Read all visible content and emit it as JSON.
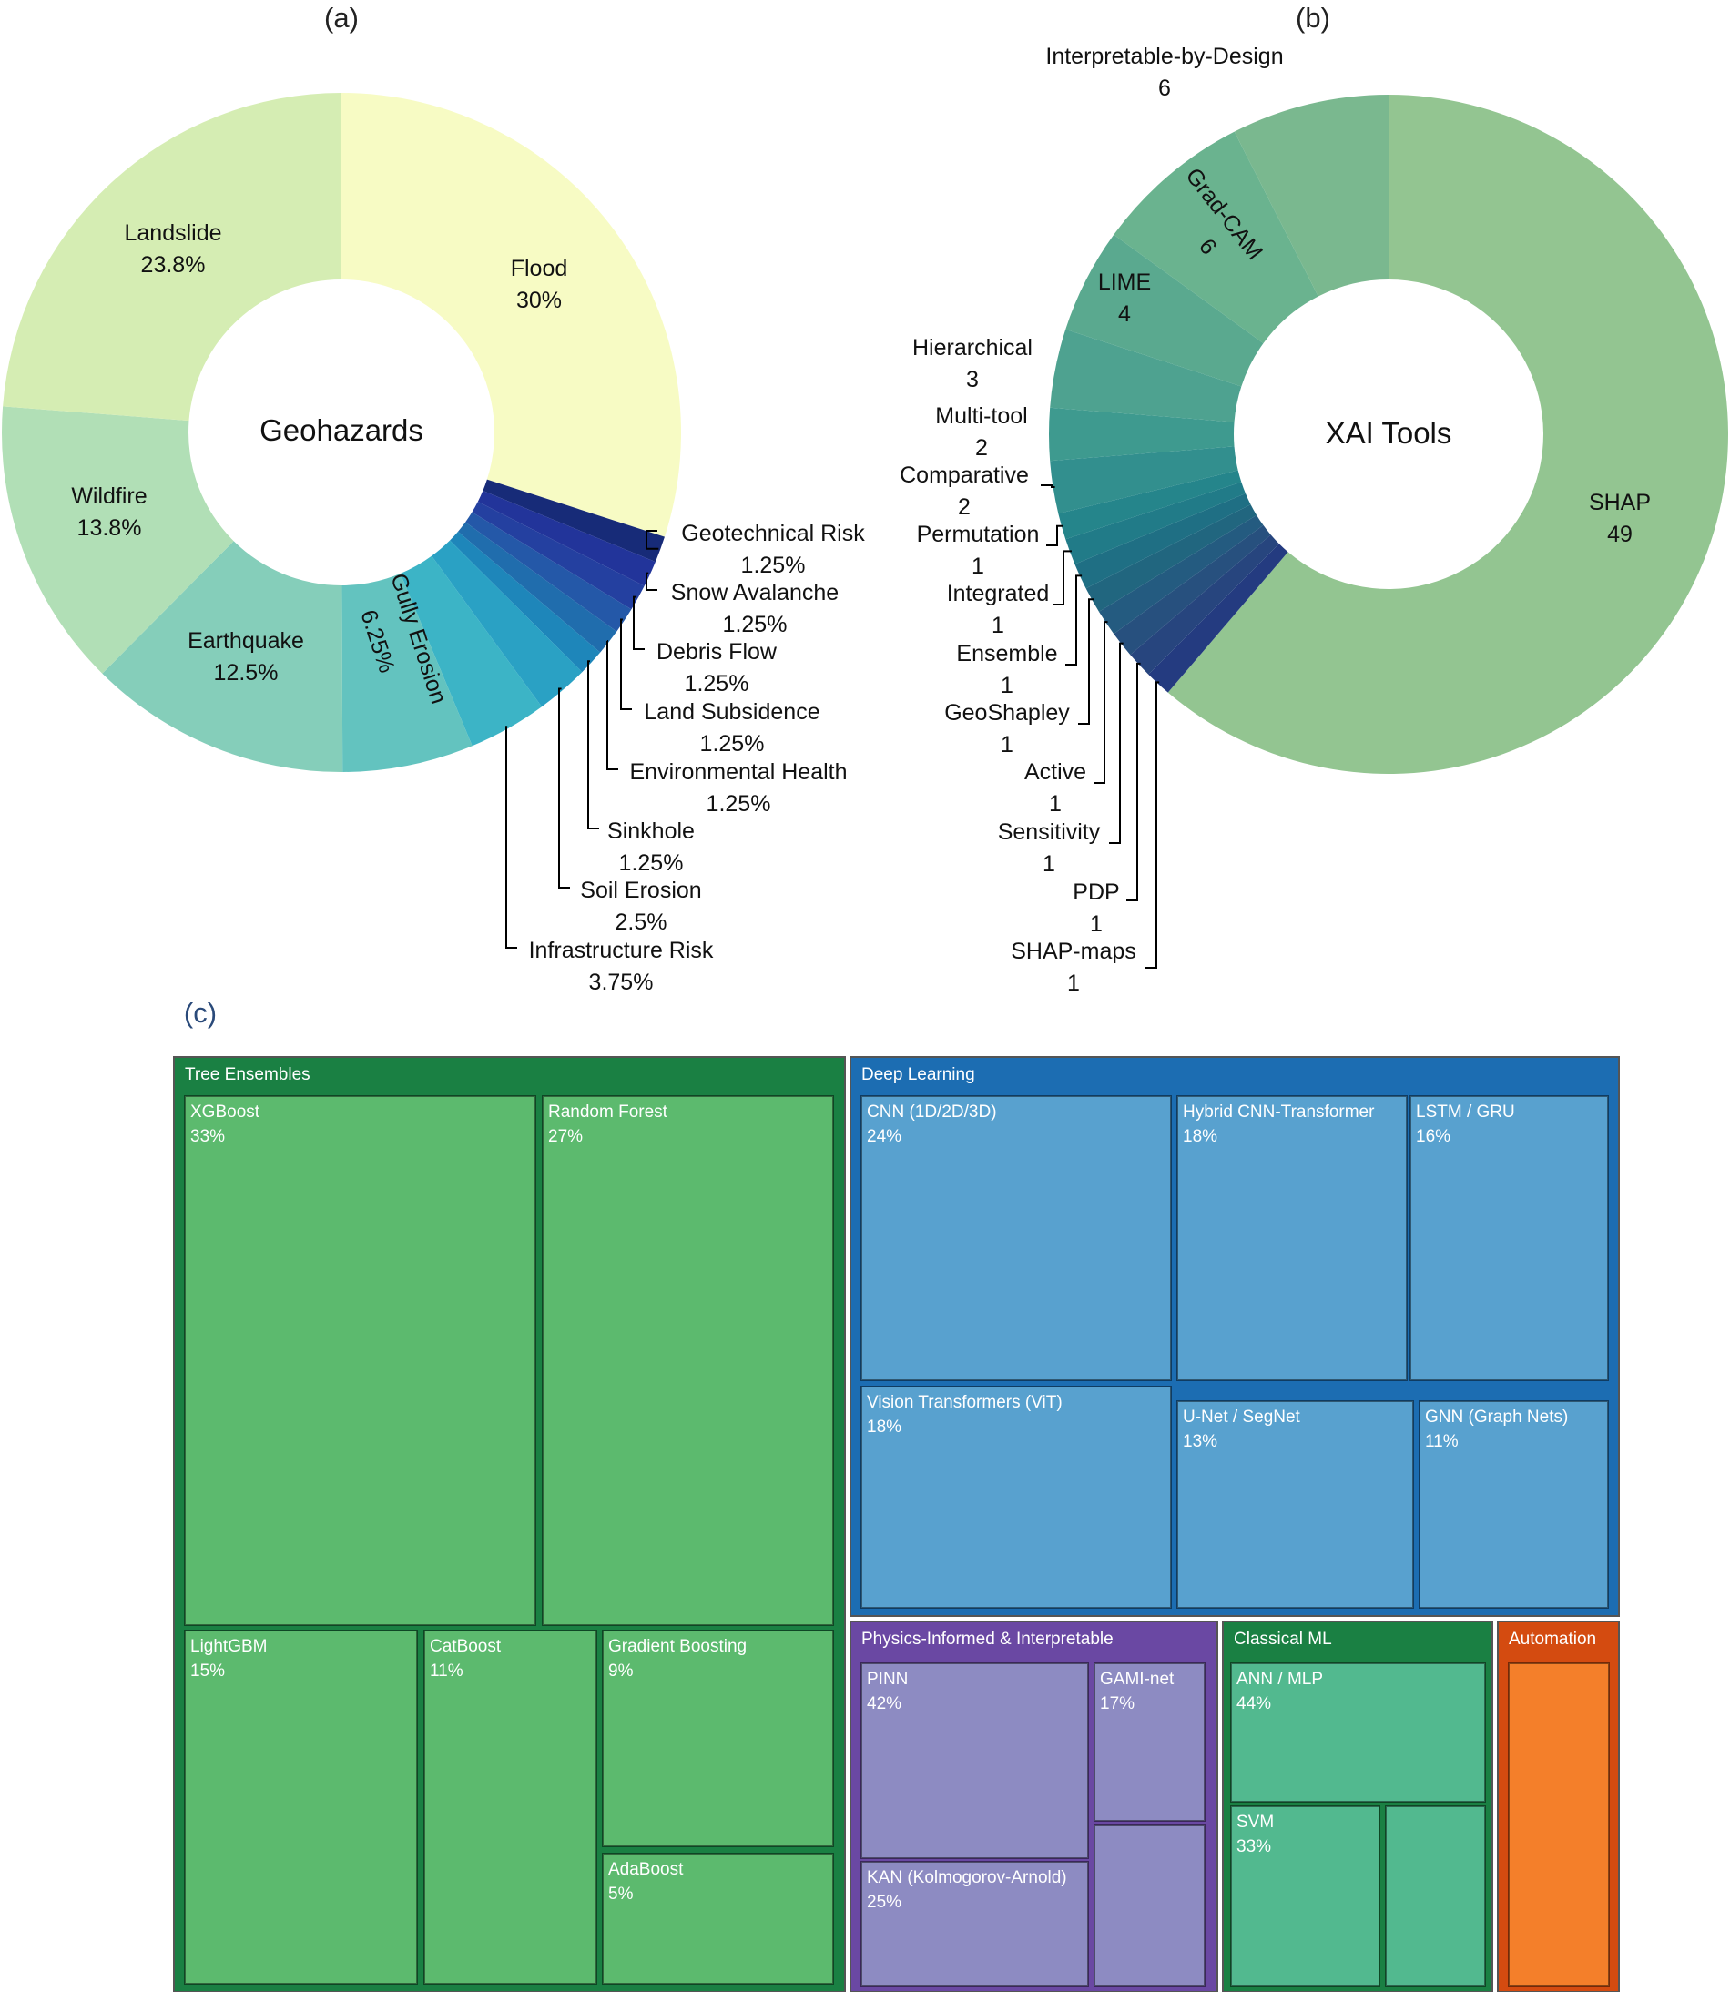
{
  "panel_labels": {
    "a": "(a)",
    "b": "(b)",
    "c": "(c)"
  },
  "chart_data": [
    {
      "type": "pie",
      "style": "donut",
      "center_label": "Geohazards",
      "slices": [
        {
          "label": "Flood",
          "value_text": "30%",
          "value": 30,
          "color": "#f7fbc4"
        },
        {
          "label": "Geotechnical Risk",
          "value_text": "1.25%",
          "value": 1.25,
          "color": "#172b78"
        },
        {
          "label": "Snow Avalanche",
          "value_text": "1.25%",
          "value": 1.25,
          "color": "#22349a"
        },
        {
          "label": "Debris Flow",
          "value_text": "1.25%",
          "value": 1.25,
          "color": "#2440a0"
        },
        {
          "label": "Land Subsidence",
          "value_text": "1.25%",
          "value": 1.25,
          "color": "#2458a8"
        },
        {
          "label": "Environmental Health",
          "value_text": "1.25%",
          "value": 1.25,
          "color": "#206dad"
        },
        {
          "label": "Sinkhole",
          "value_text": "1.25%",
          "value": 1.25,
          "color": "#1e86ba"
        },
        {
          "label": "Soil Erosion",
          "value_text": "2.5%",
          "value": 2.5,
          "color": "#2aa1c4"
        },
        {
          "label": "Infrastructure Risk",
          "value_text": "3.75%",
          "value": 3.75,
          "color": "#3cb4c6"
        },
        {
          "label": "Gully Erosion",
          "value_text": "6.25%",
          "value": 6.25,
          "color": "#63c3bf"
        },
        {
          "label": "Earthquake",
          "value_text": "12.5%",
          "value": 12.5,
          "color": "#85ceba"
        },
        {
          "label": "Wildfire",
          "value_text": "13.8%",
          "value": 13.8,
          "color": "#b1dfb6"
        },
        {
          "label": "Landslide",
          "value_text": "23.8%",
          "value": 23.8,
          "color": "#d5edb3"
        }
      ]
    },
    {
      "type": "pie",
      "style": "donut",
      "center_label": "XAI Tools",
      "slices": [
        {
          "label": "SHAP",
          "value_text": "49",
          "value": 49,
          "color": "#93c591"
        },
        {
          "label": "SHAP-maps",
          "value_text": "1",
          "value": 1,
          "color": "#243b80"
        },
        {
          "label": "PDP",
          "value_text": "1",
          "value": 1,
          "color": "#27457e"
        },
        {
          "label": "Sensitivity",
          "value_text": "1",
          "value": 1,
          "color": "#27507e"
        },
        {
          "label": "Active",
          "value_text": "1",
          "value": 1,
          "color": "#245b80"
        },
        {
          "label": "GeoShapley",
          "value_text": "1",
          "value": 1,
          "color": "#21667f"
        },
        {
          "label": "Ensemble",
          "value_text": "1",
          "value": 1,
          "color": "#1f6f84"
        },
        {
          "label": "Integrated",
          "value_text": "1",
          "value": 1,
          "color": "#217b88"
        },
        {
          "label": "Permutation",
          "value_text": "1",
          "value": 1,
          "color": "#25858b"
        },
        {
          "label": "Comparative",
          "value_text": "2",
          "value": 2,
          "color": "#328f8e"
        },
        {
          "label": "Multi-tool",
          "value_text": "2",
          "value": 2,
          "color": "#3e9a8f"
        },
        {
          "label": "Hierarchical",
          "value_text": "3",
          "value": 3,
          "color": "#4ea290"
        },
        {
          "label": "LIME",
          "value_text": "4",
          "value": 4,
          "color": "#5aa98f"
        },
        {
          "label": "Grad-CAM",
          "value_text": "6",
          "value": 6,
          "color": "#6ab38f"
        },
        {
          "label": "Interpretable-by-Design",
          "value_text": "6",
          "value": 6,
          "color": "#7ab88f"
        }
      ]
    },
    {
      "type": "treemap",
      "groups": [
        {
          "name": "Tree Ensembles",
          "color": "#1a8043",
          "leaf_color": "#5cba6e",
          "items": [
            {
              "name": "XGBoost",
              "pct": "33%"
            },
            {
              "name": "Random Forest",
              "pct": "27%"
            },
            {
              "name": "LightGBM",
              "pct": "15%"
            },
            {
              "name": "CatBoost",
              "pct": "11%"
            },
            {
              "name": "Gradient Boosting",
              "pct": "9%"
            },
            {
              "name": "AdaBoost",
              "pct": "5%"
            }
          ]
        },
        {
          "name": "Deep Learning",
          "color": "#1c6db2",
          "leaf_color": "#58a1cf",
          "items": [
            {
              "name": "CNN (1D/2D/3D)",
              "pct": "24%"
            },
            {
              "name": "Hybrid CNN-Transformer",
              "pct": "18%"
            },
            {
              "name": "LSTM / GRU",
              "pct": "16%"
            },
            {
              "name": "Vision Transformers (ViT)",
              "pct": "18%"
            },
            {
              "name": "U-Net / SegNet",
              "pct": "13%"
            },
            {
              "name": "GNN (Graph Nets)",
              "pct": "11%"
            }
          ]
        },
        {
          "name": "Physics-Informed & Interpretable",
          "color": "#6a48a3",
          "leaf_color": "#8d8bc2",
          "items": [
            {
              "name": "PINN",
              "pct": "42%"
            },
            {
              "name": "GAMI-net",
              "pct": "17%"
            },
            {
              "name": "KAN (Kolmogorov-Arnold)",
              "pct": "25%"
            },
            {
              "name": "",
              "pct": ""
            }
          ]
        },
        {
          "name": "Classical ML",
          "color": "#1a8043",
          "leaf_color": "#52b98f",
          "items": [
            {
              "name": "ANN / MLP",
              "pct": "44%"
            },
            {
              "name": "SVM",
              "pct": "33%"
            },
            {
              "name": "",
              "pct": ""
            }
          ]
        },
        {
          "name": "Automation",
          "color": "#d44b10",
          "leaf_color": "#f47f2a",
          "items": [
            {
              "name": "",
              "pct": ""
            }
          ]
        }
      ]
    }
  ]
}
